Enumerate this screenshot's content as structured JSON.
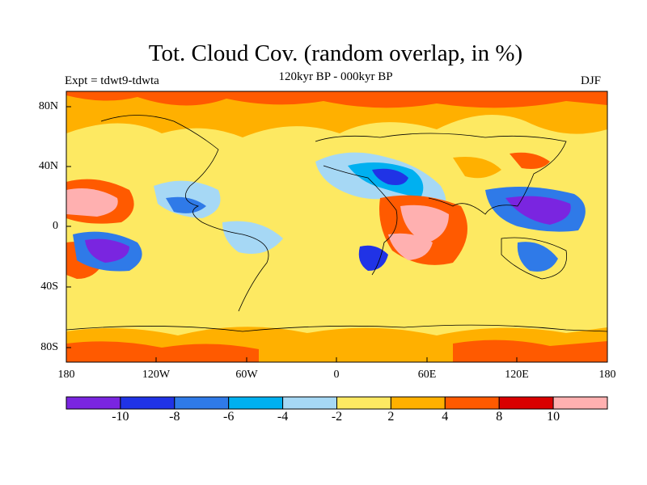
{
  "title": "Tot. Cloud Cov. (random overlap, in %)",
  "subtitle_left": "Expt = tdwt9-tdwta",
  "subtitle_center": "120kyr BP - 000kyr BP",
  "subtitle_right": "DJF",
  "lat_labels": [
    "80N",
    "40N",
    "0",
    "40S",
    "80S"
  ],
  "lon_labels": [
    "180",
    "120W",
    "60W",
    "0",
    "60E",
    "120E",
    "180"
  ],
  "colorbar": {
    "colors": [
      "#7a25e0",
      "#2033e6",
      "#2f7ae8",
      "#00b0f0",
      "#a6d8f5",
      "#fde962",
      "#ffb000",
      "#ff5a00",
      "#d90000",
      "#ffb0b0"
    ],
    "labels": [
      "-10",
      "-8",
      "-6",
      "-4",
      "-2",
      "2",
      "4",
      "8",
      "10"
    ]
  }
}
